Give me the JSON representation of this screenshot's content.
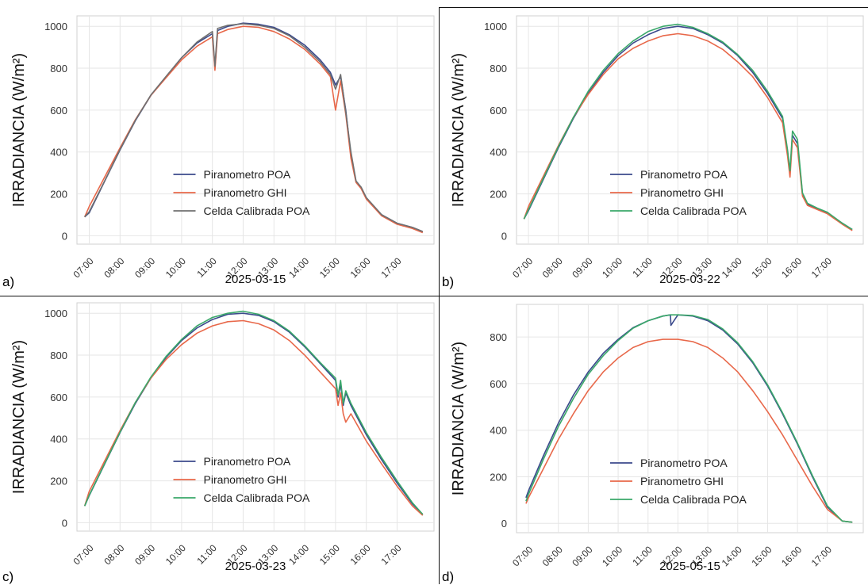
{
  "legend": [
    "Piranometro POA",
    "Piranometro GHI",
    "Celda Calibrada POA"
  ],
  "colors": {
    "poa": "#3b4a8c",
    "ghi": "#e8684a",
    "celda_green": "#3aa86a",
    "celda_gray": "#707070",
    "grid": "#e6e6e6",
    "axes": "#d0d0d0"
  },
  "chart_data": [
    {
      "panel_label": "a)",
      "type": "line",
      "xlabel": "2025-03-15",
      "ylabel": "IRRADIANCIA (W/m²)",
      "xticks": [
        "07:00",
        "08:00",
        "09:00",
        "10:00",
        "11:00",
        "12:00",
        "13:00",
        "14:00",
        "15:00",
        "16:00",
        "17:00"
      ],
      "yticks": [
        0,
        200,
        400,
        600,
        800,
        1000
      ],
      "ylim": [
        -40,
        1050
      ],
      "xlim": [
        "06:36",
        "18:12"
      ],
      "legend_position": "lower center",
      "celda_color": "celda_gray",
      "series": [
        {
          "name": "Piranometro POA",
          "x": [
            "06:51",
            "07:00",
            "07:30",
            "08:00",
            "08:30",
            "09:00",
            "09:30",
            "10:00",
            "10:30",
            "11:00",
            "11:05",
            "11:10",
            "11:30",
            "12:00",
            "12:30",
            "13:00",
            "13:30",
            "14:00",
            "14:30",
            "14:50",
            "15:00",
            "15:10",
            "15:20",
            "15:30",
            "15:40",
            "15:50",
            "16:00",
            "16:30",
            "17:00",
            "17:30",
            "17:50"
          ],
          "y": [
            90,
            110,
            260,
            410,
            550,
            670,
            760,
            850,
            920,
            965,
            800,
            980,
            1000,
            1015,
            1010,
            995,
            960,
            910,
            840,
            780,
            720,
            760,
            600,
            380,
            260,
            230,
            180,
            100,
            60,
            40,
            20
          ]
        },
        {
          "name": "Piranometro GHI",
          "x": [
            "06:51",
            "07:00",
            "07:30",
            "08:00",
            "08:30",
            "09:00",
            "09:30",
            "10:00",
            "10:30",
            "11:00",
            "11:05",
            "11:10",
            "11:30",
            "12:00",
            "12:30",
            "13:00",
            "13:30",
            "14:00",
            "14:30",
            "14:50",
            "15:00",
            "15:10",
            "15:20",
            "15:30",
            "15:40",
            "15:50",
            "16:00",
            "16:30",
            "17:00",
            "17:30",
            "17:50"
          ],
          "y": [
            90,
            140,
            280,
            420,
            555,
            670,
            755,
            840,
            905,
            950,
            790,
            965,
            985,
            1000,
            995,
            975,
            940,
            890,
            820,
            760,
            600,
            740,
            580,
            370,
            255,
            225,
            175,
            95,
            55,
            35,
            15
          ]
        },
        {
          "name": "Celda Calibrada POA",
          "x": [
            "06:51",
            "07:00",
            "07:30",
            "08:00",
            "08:30",
            "09:00",
            "09:30",
            "10:00",
            "10:30",
            "11:00",
            "11:05",
            "11:10",
            "11:30",
            "12:00",
            "12:30",
            "13:00",
            "13:30",
            "14:00",
            "14:30",
            "14:50",
            "15:00",
            "15:10",
            "15:20",
            "15:30",
            "15:40",
            "15:50",
            "16:00",
            "16:30",
            "17:00",
            "17:30",
            "17:50"
          ],
          "y": [
            90,
            115,
            262,
            412,
            552,
            672,
            762,
            850,
            925,
            975,
            810,
            990,
            1005,
            1012,
            1005,
            990,
            955,
            900,
            830,
            770,
            700,
            770,
            590,
            400,
            262,
            232,
            182,
            100,
            60,
            40,
            20
          ]
        }
      ]
    },
    {
      "panel_label": "b)",
      "type": "line",
      "xlabel": "2025-03-22",
      "ylabel": "IRRADIANCIA (W/m²)",
      "xticks": [
        "07:00",
        "08:00",
        "09:00",
        "10:00",
        "11:00",
        "12:00",
        "13:00",
        "14:00",
        "15:00",
        "16:00",
        "17:00"
      ],
      "yticks": [
        0,
        200,
        400,
        600,
        800,
        1000
      ],
      "ylim": [
        -40,
        1050
      ],
      "xlim": [
        "06:36",
        "18:12"
      ],
      "legend_position": "lower center",
      "celda_color": "celda_green",
      "series": [
        {
          "name": "Piranometro POA",
          "x": [
            "06:51",
            "07:00",
            "07:30",
            "08:00",
            "08:30",
            "09:00",
            "09:30",
            "10:00",
            "10:30",
            "11:00",
            "11:30",
            "12:00",
            "12:30",
            "13:00",
            "13:30",
            "14:00",
            "14:30",
            "15:00",
            "15:30",
            "15:40",
            "15:45",
            "15:50",
            "16:00",
            "16:10",
            "16:20",
            "16:40",
            "17:00",
            "17:30",
            "17:50"
          ],
          "y": [
            80,
            120,
            270,
            420,
            560,
            680,
            780,
            860,
            920,
            960,
            990,
            1000,
            990,
            960,
            920,
            860,
            780,
            680,
            560,
            400,
            300,
            480,
            440,
            200,
            150,
            130,
            110,
            60,
            30
          ]
        },
        {
          "name": "Piranometro GHI",
          "x": [
            "06:51",
            "07:00",
            "07:30",
            "08:00",
            "08:30",
            "09:00",
            "09:30",
            "10:00",
            "10:30",
            "11:00",
            "11:30",
            "12:00",
            "12:30",
            "13:00",
            "13:30",
            "14:00",
            "14:30",
            "15:00",
            "15:30",
            "15:40",
            "15:45",
            "15:50",
            "16:00",
            "16:10",
            "16:20",
            "16:40",
            "17:00",
            "17:30",
            "17:50"
          ],
          "y": [
            80,
            140,
            285,
            430,
            565,
            675,
            770,
            845,
            895,
            930,
            955,
            965,
            955,
            930,
            890,
            830,
            760,
            660,
            540,
            380,
            280,
            460,
            420,
            190,
            145,
            125,
            105,
            55,
            25
          ]
        },
        {
          "name": "Celda Calibrada POA",
          "x": [
            "06:51",
            "07:00",
            "07:30",
            "08:00",
            "08:30",
            "09:00",
            "09:30",
            "10:00",
            "10:30",
            "11:00",
            "11:30",
            "12:00",
            "12:30",
            "13:00",
            "13:30",
            "14:00",
            "14:30",
            "15:00",
            "15:30",
            "15:40",
            "15:45",
            "15:50",
            "16:00",
            "16:10",
            "16:20",
            "16:40",
            "17:00",
            "17:30",
            "17:50"
          ],
          "y": [
            80,
            125,
            275,
            425,
            565,
            690,
            790,
            870,
            930,
            975,
            1000,
            1010,
            995,
            965,
            925,
            865,
            790,
            690,
            570,
            410,
            310,
            500,
            460,
            205,
            155,
            132,
            112,
            60,
            30
          ]
        }
      ]
    },
    {
      "panel_label": "c)",
      "type": "line",
      "xlabel": "2025-03-23",
      "ylabel": "IRRADIANCIA (W/m²)",
      "xticks": [
        "07:00",
        "08:00",
        "09:00",
        "10:00",
        "11:00",
        "12:00",
        "13:00",
        "14:00",
        "15:00",
        "16:00",
        "17:00"
      ],
      "yticks": [
        0,
        200,
        400,
        600,
        800,
        1000
      ],
      "ylim": [
        -40,
        1050
      ],
      "xlim": [
        "06:36",
        "18:12"
      ],
      "legend_position": "lower center",
      "celda_color": "celda_green",
      "series": [
        {
          "name": "Piranometro POA",
          "x": [
            "06:51",
            "07:00",
            "07:30",
            "08:00",
            "08:30",
            "09:00",
            "09:30",
            "10:00",
            "10:30",
            "11:00",
            "11:30",
            "12:00",
            "12:30",
            "13:00",
            "13:30",
            "14:00",
            "14:30",
            "15:00",
            "15:05",
            "15:10",
            "15:15",
            "15:20",
            "15:30",
            "16:00",
            "16:30",
            "17:00",
            "17:30",
            "17:50"
          ],
          "y": [
            80,
            130,
            280,
            430,
            570,
            690,
            790,
            870,
            930,
            970,
            995,
            1000,
            990,
            960,
            910,
            840,
            760,
            680,
            600,
            660,
            560,
            620,
            560,
            420,
            300,
            190,
            90,
            40
          ]
        },
        {
          "name": "Piranometro GHI",
          "x": [
            "06:51",
            "07:00",
            "07:30",
            "08:00",
            "08:30",
            "09:00",
            "09:30",
            "10:00",
            "10:30",
            "11:00",
            "11:30",
            "12:00",
            "12:30",
            "13:00",
            "13:30",
            "14:00",
            "14:30",
            "15:00",
            "15:05",
            "15:10",
            "15:15",
            "15:20",
            "15:30",
            "16:00",
            "16:30",
            "17:00",
            "17:30",
            "17:50"
          ],
          "y": [
            80,
            150,
            295,
            440,
            575,
            690,
            780,
            850,
            905,
            940,
            960,
            965,
            950,
            920,
            870,
            800,
            720,
            640,
            560,
            620,
            520,
            480,
            520,
            390,
            280,
            175,
            80,
            35
          ]
        },
        {
          "name": "Celda Calibrada POA",
          "x": [
            "06:51",
            "07:00",
            "07:30",
            "08:00",
            "08:30",
            "09:00",
            "09:30",
            "10:00",
            "10:30",
            "11:00",
            "11:30",
            "12:00",
            "12:30",
            "13:00",
            "13:30",
            "14:00",
            "14:30",
            "15:00",
            "15:05",
            "15:10",
            "15:15",
            "15:20",
            "15:30",
            "16:00",
            "16:30",
            "17:00",
            "17:30",
            "17:50"
          ],
          "y": [
            80,
            132,
            282,
            432,
            575,
            695,
            795,
            875,
            940,
            980,
            1000,
            1010,
            995,
            965,
            915,
            845,
            765,
            690,
            610,
            680,
            570,
            630,
            570,
            430,
            310,
            200,
            95,
            40
          ]
        }
      ]
    },
    {
      "panel_label": "d)",
      "type": "line",
      "xlabel": "2025-05-15",
      "ylabel": "IRRADIANCIA (W/m²)",
      "xticks": [
        "07:00",
        "08:00",
        "09:00",
        "10:00",
        "11:00",
        "12:00",
        "13:00",
        "14:00",
        "15:00",
        "16:00",
        "17:00"
      ],
      "yticks": [
        0,
        200,
        400,
        600,
        800
      ],
      "ylim": [
        -40,
        940
      ],
      "xlim": [
        "06:36",
        "18:12"
      ],
      "legend_position": "lower center",
      "celda_color": "celda_green",
      "series": [
        {
          "name": "Piranometro POA",
          "x": [
            "06:55",
            "07:00",
            "07:30",
            "08:00",
            "08:30",
            "09:00",
            "09:30",
            "10:00",
            "10:30",
            "11:00",
            "11:30",
            "11:45",
            "11:46",
            "12:00",
            "12:30",
            "13:00",
            "13:30",
            "14:00",
            "14:30",
            "15:00",
            "15:30",
            "16:00",
            "16:30",
            "17:00",
            "17:30",
            "17:50"
          ],
          "y": [
            110,
            140,
            290,
            430,
            550,
            650,
            730,
            790,
            840,
            870,
            890,
            895,
            850,
            895,
            890,
            870,
            830,
            770,
            690,
            590,
            470,
            340,
            200,
            70,
            10,
            5
          ]
        },
        {
          "name": "Piranometro GHI",
          "x": [
            "06:55",
            "07:00",
            "07:30",
            "08:00",
            "08:30",
            "09:00",
            "09:30",
            "10:00",
            "10:30",
            "11:00",
            "11:30",
            "11:45",
            "11:46",
            "12:00",
            "12:30",
            "13:00",
            "13:30",
            "14:00",
            "14:30",
            "15:00",
            "15:30",
            "16:00",
            "16:30",
            "17:00",
            "17:30",
            "17:50"
          ],
          "y": [
            85,
            110,
            235,
            360,
            470,
            570,
            650,
            710,
            755,
            780,
            790,
            790,
            790,
            790,
            780,
            755,
            710,
            650,
            570,
            480,
            380,
            270,
            160,
            60,
            10,
            5
          ]
        },
        {
          "name": "Celda Calibrada POA",
          "x": [
            "06:55",
            "07:00",
            "07:30",
            "08:00",
            "08:30",
            "09:00",
            "09:30",
            "10:00",
            "10:30",
            "11:00",
            "11:30",
            "11:45",
            "11:46",
            "12:00",
            "12:30",
            "13:00",
            "13:30",
            "14:00",
            "14:30",
            "15:00",
            "15:30",
            "16:00",
            "16:30",
            "17:00",
            "17:30",
            "17:50"
          ],
          "y": [
            95,
            125,
            275,
            415,
            535,
            640,
            720,
            785,
            838,
            870,
            890,
            895,
            895,
            895,
            892,
            875,
            835,
            775,
            695,
            595,
            475,
            345,
            205,
            75,
            10,
            5
          ]
        }
      ]
    }
  ]
}
